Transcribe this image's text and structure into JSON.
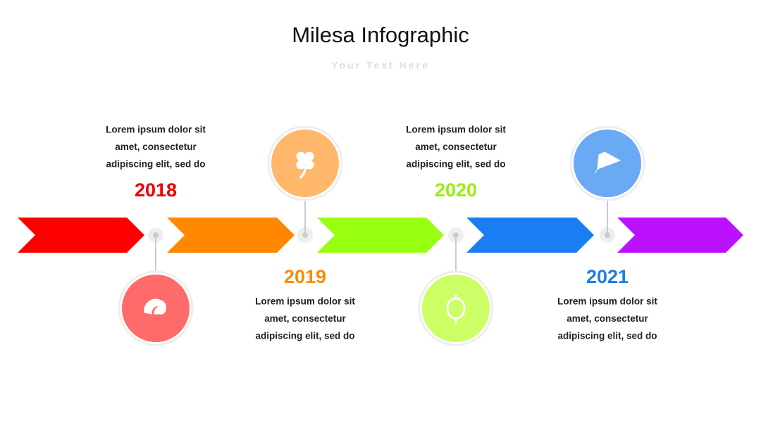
{
  "header": {
    "title": "Milesa Infographic",
    "subtitle": "Your Text Here"
  },
  "milestones": [
    {
      "year": "2018",
      "lines": [
        "Lorem ipsum dolor sit",
        "amet, consectetur",
        "adipiscing elit, sed do"
      ]
    },
    {
      "year": "2019",
      "lines": [
        "Lorem ipsum dolor sit",
        "amet, consectetur",
        "adipiscing elit, sed do"
      ]
    },
    {
      "year": "2020",
      "lines": [
        "Lorem ipsum dolor sit",
        "amet, consectetur",
        "adipiscing elit, sed do"
      ]
    },
    {
      "year": "2021",
      "lines": [
        "Lorem ipsum dolor sit",
        "amet, consectetur",
        "adipiscing elit, sed do"
      ]
    }
  ]
}
